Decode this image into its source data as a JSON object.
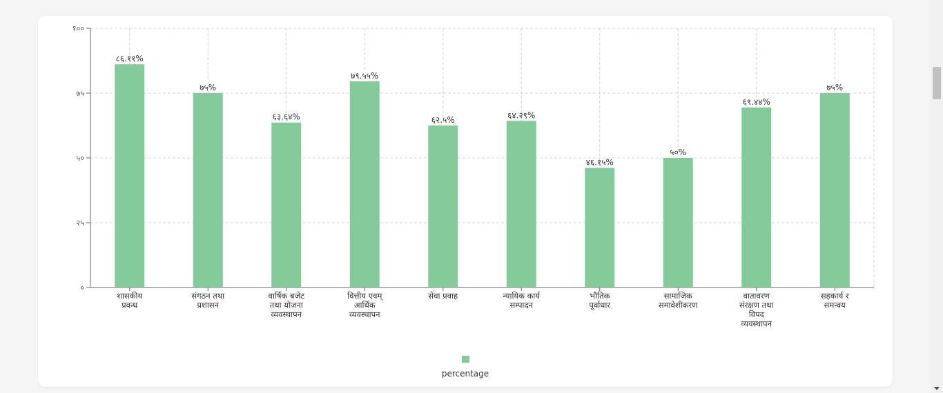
{
  "chart_data": {
    "type": "bar",
    "categories": [
      [
        "शासकीय",
        "प्रवन्ध"
      ],
      [
        "संगठन तथा",
        "प्रशासन"
      ],
      [
        "वार्षिक बजेट",
        "तथा योजना",
        "व्यवस्थापन"
      ],
      [
        "वित्तीय एवम्",
        "आर्थिक",
        "व्यवस्थापन"
      ],
      [
        "सेवा प्रवाह"
      ],
      [
        "न्यायिक कार्य",
        "सम्पादन"
      ],
      [
        "भौतिक",
        "पूर्वाधार"
      ],
      [
        "सामाजिक",
        "समावेशीकरण"
      ],
      [
        "वातावरण",
        "संरक्षण तथा",
        "विपद",
        "व्यवस्थापन"
      ],
      [
        "सहकार्य र",
        "समन्वय"
      ]
    ],
    "values": [
      86.11,
      75,
      63.64,
      79.55,
      62.5,
      64.29,
      46.15,
      50,
      69.44,
      75
    ],
    "value_labels": [
      "८६.११%",
      "७५%",
      "६३.६४%",
      "७९.५५%",
      "६२.५%",
      "६४.२९%",
      "४६.१५%",
      "५०%",
      "६९.४४%",
      "७५%"
    ],
    "y_ticks": [
      0,
      25,
      50,
      75,
      100
    ],
    "y_tick_labels": [
      "०",
      "२५",
      "५०",
      "७५",
      "१००"
    ],
    "ylim": [
      0,
      100
    ],
    "series": [
      {
        "name": "percentage",
        "values": [
          86.11,
          75,
          63.64,
          79.55,
          62.5,
          64.29,
          46.15,
          50,
          69.44,
          75
        ]
      }
    ],
    "grid": true,
    "legend_position": "bottom",
    "bar_color": "#84ca9b"
  },
  "legend": {
    "label": "percentage"
  }
}
